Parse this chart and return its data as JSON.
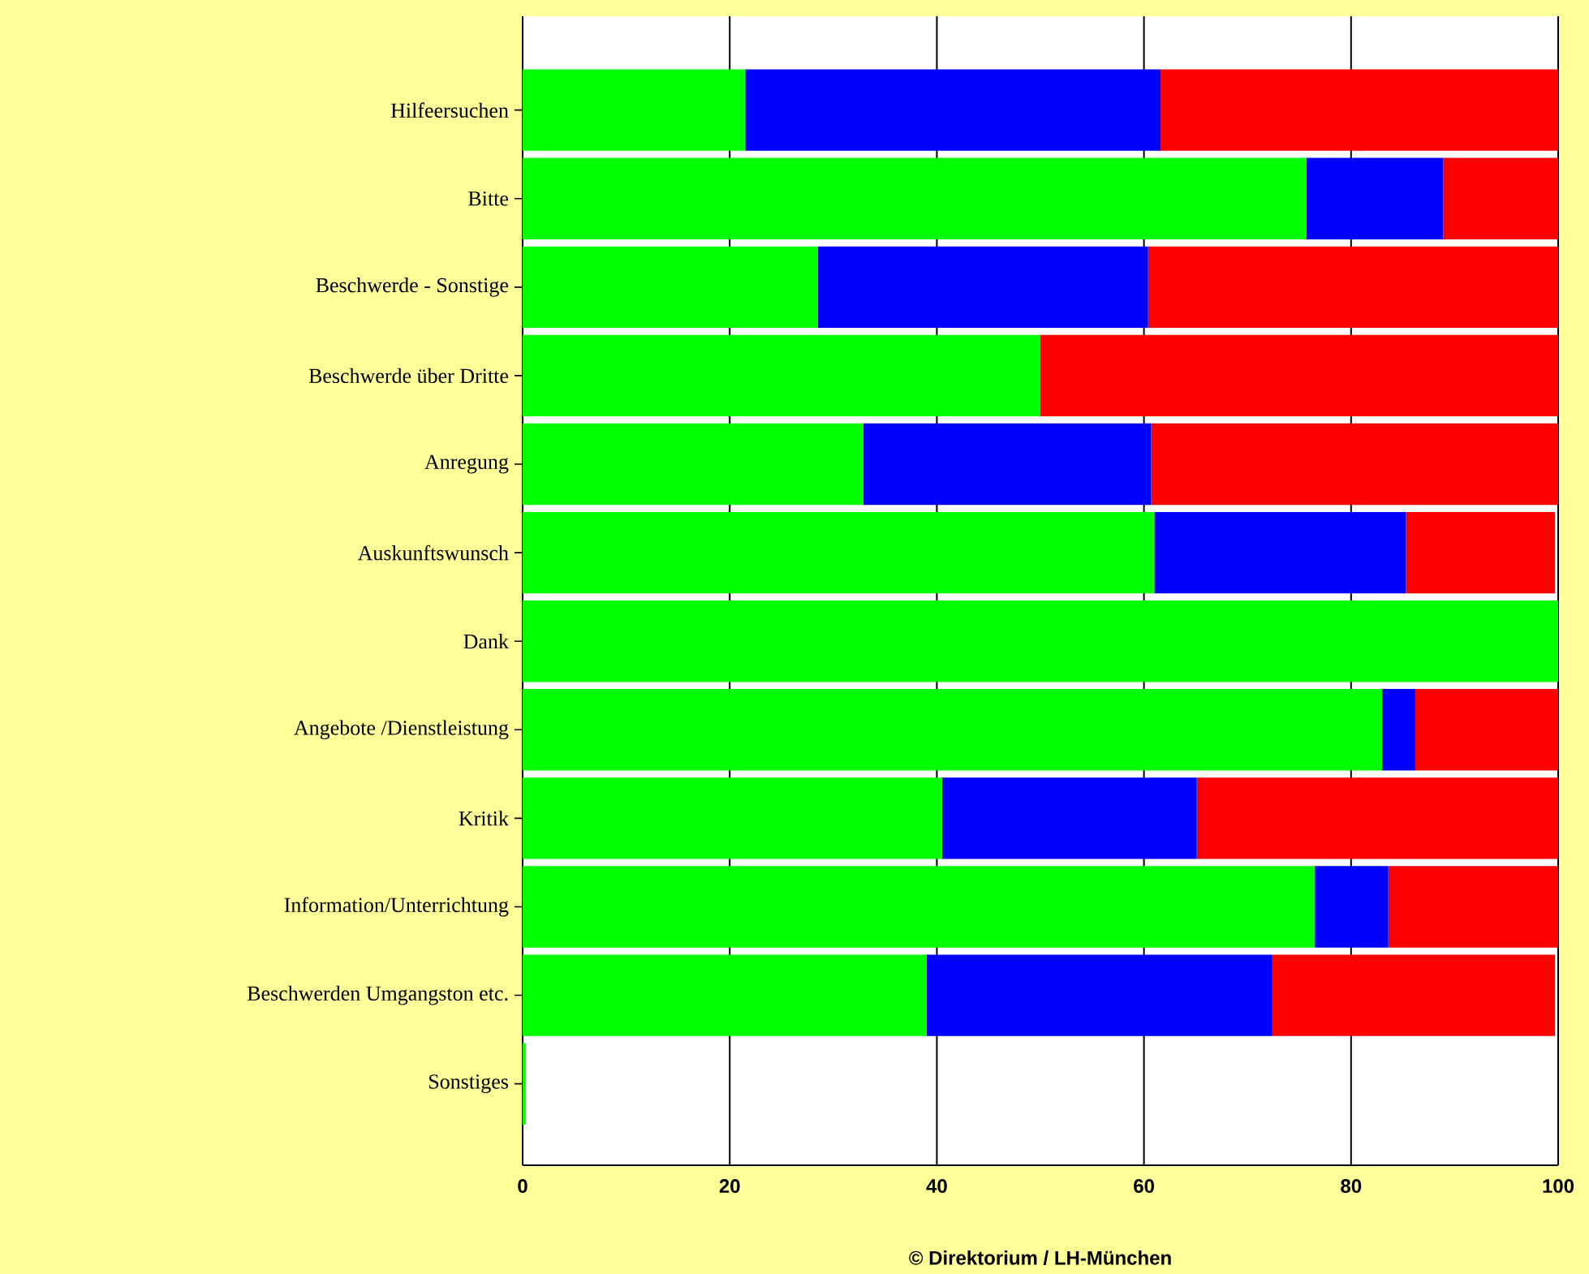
{
  "chart_data": {
    "type": "bar",
    "orientation": "horizontal",
    "stacked": true,
    "categories": [
      "Hilfeersuchen",
      "Bitte",
      "Beschwerde - Sonstige",
      "Beschwerde über Dritte",
      "Anregung",
      "Auskunftswunsch",
      "Dank",
      "Angebote /Dienstleistung",
      "Kritik",
      "Information/Unterrichtung",
      "Beschwerden Umgangston etc.",
      "Sonstiges"
    ],
    "series": [
      {
        "color": "#00ff00",
        "values": [
          21.5,
          75.7,
          28.5,
          50,
          32.9,
          61.0,
          100,
          83.0,
          40.5,
          76.5,
          39.0,
          0.3
        ]
      },
      {
        "color": "#0000ff",
        "values": [
          40.1,
          13.2,
          31.9,
          0,
          27.8,
          24.3,
          0,
          3.2,
          24.6,
          7.1,
          33.4,
          0
        ]
      },
      {
        "color": "#ff0000",
        "values": [
          38.4,
          11.1,
          39.6,
          50,
          39.3,
          14.4,
          0,
          13.8,
          34.9,
          16.4,
          27.3,
          0
        ]
      }
    ],
    "xlim": [
      0,
      100
    ],
    "xticks": [
      0,
      20,
      40,
      60,
      80,
      100
    ],
    "grid": "x",
    "annotations": [
      "© Direktorium / LH-München"
    ]
  }
}
